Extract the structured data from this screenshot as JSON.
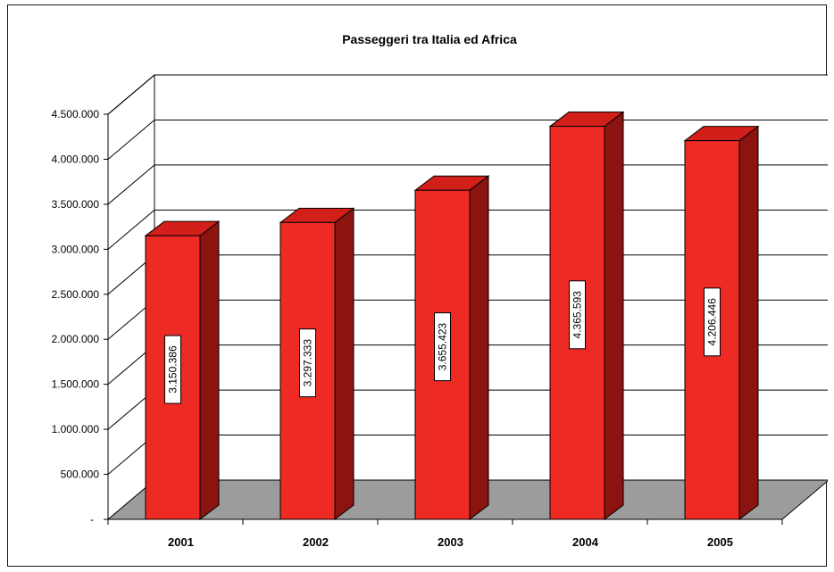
{
  "chart_data": {
    "type": "bar",
    "title": "Passeggeri tra Italia ed Africa",
    "xlabel": "",
    "ylabel": "",
    "categories": [
      "2001",
      "2002",
      "2003",
      "2004",
      "2005"
    ],
    "values": [
      3150386,
      3297333,
      3655423,
      4365593,
      4206446
    ],
    "data_labels": [
      "3.150.386",
      "3.297.333",
      "3.655.423",
      "4.365.593",
      "4.206.446"
    ],
    "ylim": [
      0,
      4500000
    ],
    "yticks": [
      0,
      500000,
      1000000,
      1500000,
      2000000,
      2500000,
      3000000,
      3500000,
      4000000,
      4500000
    ],
    "ytick_labels": [
      "-",
      "500.000",
      "1.000.000",
      "1.500.000",
      "2.000.000",
      "2.500.000",
      "3.000.000",
      "3.500.000",
      "4.000.000",
      "4.500.000"
    ],
    "grid": true,
    "legend": "none",
    "style": "3d",
    "colors": {
      "bar_front": "#ee2a24",
      "bar_side": "#8b1410",
      "bar_top": "#d21f1a",
      "floor": "#9c9c9c",
      "background": "#ffffff"
    }
  }
}
